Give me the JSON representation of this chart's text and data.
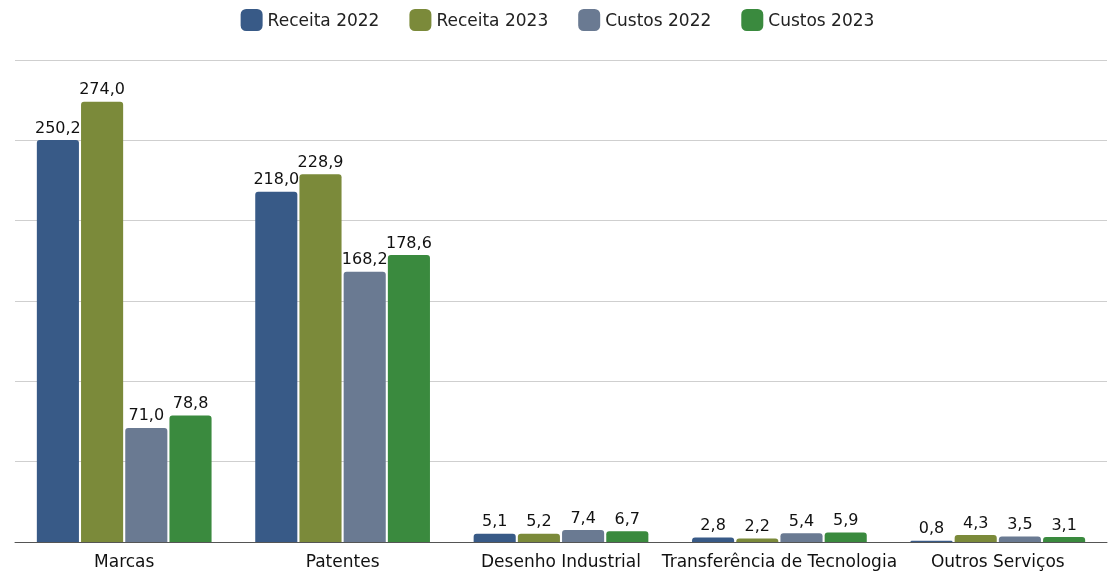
{
  "chart_data": {
    "type": "bar",
    "categories": [
      "Marcas",
      "Patentes",
      "Desenho Industrial",
      "Transferência de Tecnologia",
      "Outros Serviços"
    ],
    "series": [
      {
        "name": "Receita 2022",
        "color": "#385a87",
        "values": [
          250.2,
          218.0,
          5.1,
          2.8,
          0.8
        ],
        "value_labels": [
          "250,2",
          "218,0",
          "5,1",
          "2,8",
          "0,8"
        ]
      },
      {
        "name": "Receita 2023",
        "color": "#7b8a3a",
        "values": [
          274.0,
          228.9,
          5.2,
          2.2,
          4.3
        ],
        "value_labels": [
          "274,0",
          "228,9",
          "5,2",
          "2,2",
          "4,3"
        ]
      },
      {
        "name": "Custos 2022",
        "color": "#6a7a92",
        "values": [
          71.0,
          168.2,
          7.4,
          5.4,
          3.5
        ],
        "value_labels": [
          "71,0",
          "168,2",
          "7,4",
          "5,4",
          "3,5"
        ]
      },
      {
        "name": "Custos 2023",
        "color": "#3a8a3e",
        "values": [
          78.8,
          178.6,
          6.7,
          5.9,
          3.1
        ],
        "value_labels": [
          "78,8",
          "178,6",
          "6,7",
          "5,9",
          "3,1"
        ]
      }
    ],
    "tick_labels": "x",
    "grid": "y",
    "legend": "top"
  }
}
